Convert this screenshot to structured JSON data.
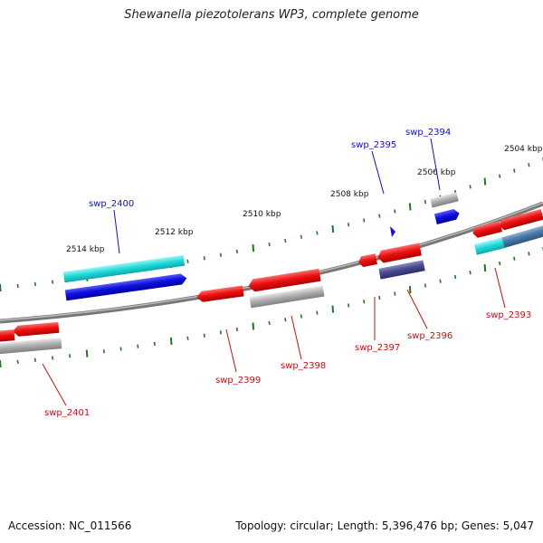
{
  "title": "Shewanella piezotolerans WP3, complete genome",
  "footer": {
    "accession": "Accession: NC_011566",
    "topology": "Topology: circular; Length: 5,396,476 bp; Genes: 5,047"
  },
  "scale_ticks": [
    "2504 kbp",
    "2506 kbp",
    "2508 kbp",
    "2510 kbp",
    "2512 kbp",
    "2514 kbp"
  ],
  "gene_labels": {
    "forward": [
      "swp_2394",
      "swp_2395",
      "swp_2400"
    ],
    "reverse": [
      "swp_2393",
      "swp_2396",
      "swp_2397",
      "swp_2398",
      "swp_2399",
      "swp_2401"
    ]
  },
  "colors": {
    "forward_label": "#1010c8",
    "reverse_label": "#c81010",
    "backbone": "#888888",
    "tick": "#1e7a1e",
    "red_feature": "#ee1111",
    "blue_feature": "#1010e0",
    "cyan_feature": "#22dddd",
    "gray_feature": "#b0b0b0",
    "navy_feature": "#4a4a90"
  }
}
